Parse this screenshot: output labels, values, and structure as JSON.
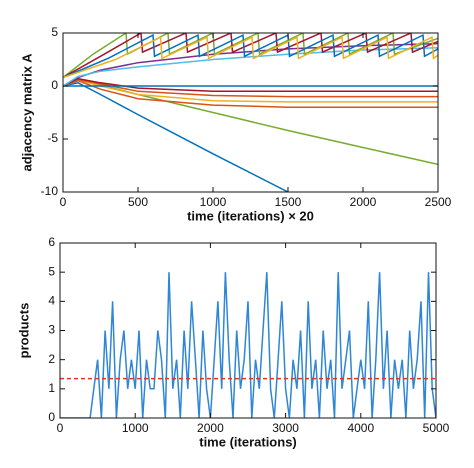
{
  "chart_data": [
    {
      "type": "line",
      "xlabel": "time (iterations) × 20",
      "ylabel": "adjacency matrix A",
      "xlim": [
        0,
        2500
      ],
      "xticks": [
        0,
        500,
        1000,
        1500,
        2000,
        2500
      ],
      "ylim": [
        -10,
        5
      ],
      "yticks": [
        -10,
        -5,
        0,
        5
      ],
      "series": [
        {
          "color": "#0072bd",
          "x": [
            0,
            100,
            250,
            500,
            1000,
            1500
          ],
          "values": [
            0,
            0.3,
            -0.8,
            -2.7,
            -6.4,
            -10
          ]
        },
        {
          "color": "#77ac30",
          "x": [
            0,
            100,
            250,
            500,
            1000,
            1500,
            2000,
            2500
          ],
          "values": [
            0,
            0.5,
            0.1,
            -0.8,
            -2.5,
            -4.2,
            -5.8,
            -7.4
          ]
        },
        {
          "color": "#d95319",
          "x": [
            0,
            100,
            250,
            500,
            1000,
            1500,
            2000,
            2500
          ],
          "values": [
            0,
            0.5,
            -0.3,
            -1.2,
            -1.8,
            -2,
            -2,
            -2
          ]
        },
        {
          "color": "#edb120",
          "x": [
            0,
            100,
            250,
            500,
            1000,
            1500,
            2000,
            2500
          ],
          "values": [
            0,
            0.6,
            0,
            -0.8,
            -1.4,
            -1.5,
            -1.5,
            -1.5
          ]
        },
        {
          "color": "#d95319",
          "x": [
            0,
            100,
            250,
            500,
            1000,
            1500,
            2000,
            2500
          ],
          "values": [
            0,
            0.6,
            0.2,
            -0.5,
            -0.9,
            -1,
            -1,
            -1
          ]
        },
        {
          "color": "#a2142f",
          "x": [
            0,
            100,
            250,
            500,
            1000,
            1500,
            2000,
            2500
          ],
          "values": [
            0,
            0.7,
            0.3,
            -0.2,
            -0.5,
            -0.5,
            -0.5,
            -0.5
          ]
        },
        {
          "color": "#0072bd",
          "x": [
            0,
            2500
          ],
          "values": [
            0,
            0
          ]
        },
        {
          "color": "#7e2f8e",
          "x": [
            0,
            100,
            250,
            500,
            1000,
            1500,
            2000,
            2500
          ],
          "values": [
            0,
            0.8,
            1.5,
            2.2,
            3,
            3.5,
            3.8,
            4
          ]
        },
        {
          "color": "#4dbeee",
          "x": [
            0,
            100,
            250,
            500,
            1000,
            1500,
            2000,
            2500
          ],
          "values": [
            0,
            0.9,
            1.4,
            1.8,
            2.5,
            3,
            3.4,
            3.6
          ]
        },
        {
          "color": "#77ac30",
          "x": [
            0,
            200,
            420,
            430,
            700,
            710,
            1000,
            1010,
            1300,
            1310,
            1600,
            1610,
            1900,
            1910,
            2200,
            2210,
            2500
          ],
          "values": [
            0.8,
            3,
            5,
            3,
            5,
            3,
            5,
            3,
            5,
            3,
            5,
            3,
            5,
            3,
            5,
            3,
            4.5
          ]
        },
        {
          "color": "#a2142f",
          "x": [
            0,
            250,
            520,
            530,
            820,
            830,
            1120,
            1130,
            1420,
            1430,
            1720,
            1730,
            2020,
            2030,
            2320,
            2330,
            2500
          ],
          "values": [
            0.8,
            2.8,
            5,
            3.2,
            5,
            3.2,
            5,
            3.2,
            5,
            3.2,
            5,
            3.2,
            5,
            3.2,
            5,
            3.2,
            4.2
          ]
        },
        {
          "color": "#0072bd",
          "x": [
            0,
            300,
            600,
            610,
            900,
            910,
            1200,
            1210,
            1500,
            1510,
            1800,
            1810,
            2100,
            2110,
            2400,
            2410,
            2500
          ],
          "values": [
            0.8,
            2.6,
            4.8,
            2.8,
            4.8,
            2.8,
            4.8,
            2.8,
            4.8,
            2.8,
            4.8,
            2.8,
            4.8,
            2.8,
            4.8,
            2.8,
            3.5
          ]
        },
        {
          "color": "#edb120",
          "x": [
            0,
            350,
            650,
            660,
            960,
            970,
            1260,
            1270,
            1560,
            1570,
            1860,
            1870,
            2160,
            2170,
            2460,
            2470,
            2500
          ],
          "values": [
            0.8,
            2.5,
            4.6,
            2.6,
            4.6,
            2.6,
            4.6,
            2.6,
            4.6,
            2.6,
            4.6,
            2.6,
            4.6,
            2.6,
            4.6,
            2.6,
            2.9
          ]
        }
      ]
    },
    {
      "type": "line",
      "xlabel": "time (iterations)",
      "ylabel": "products",
      "xlim": [
        0,
        5000
      ],
      "xticks": [
        0,
        1000,
        2000,
        3000,
        4000,
        5000
      ],
      "ylim": [
        0,
        6
      ],
      "yticks": [
        0,
        1,
        2,
        3,
        4,
        5,
        6
      ],
      "reference_line": {
        "value": 1.35,
        "color": "#e8301c"
      },
      "series": [
        {
          "color": "#2f86d6",
          "x": [
            0,
            50,
            100,
            150,
            200,
            250,
            300,
            350,
            400,
            450,
            500,
            550,
            600,
            650,
            700,
            750,
            800,
            850,
            900,
            950,
            1000,
            1050,
            1100,
            1150,
            1200,
            1250,
            1300,
            1350,
            1400,
            1450,
            1500,
            1550,
            1600,
            1650,
            1700,
            1750,
            1800,
            1850,
            1900,
            1950,
            2000,
            2050,
            2100,
            2150,
            2200,
            2250,
            2300,
            2350,
            2400,
            2450,
            2500,
            2550,
            2600,
            2650,
            2700,
            2750,
            2800,
            2850,
            2900,
            2950,
            3000,
            3050,
            3100,
            3150,
            3200,
            3250,
            3300,
            3350,
            3400,
            3450,
            3500,
            3550,
            3600,
            3650,
            3700,
            3750,
            3800,
            3850,
            3900,
            3950,
            4000,
            4050,
            4100,
            4150,
            4200,
            4250,
            4300,
            4350,
            4400,
            4450,
            4500,
            4550,
            4600,
            4650,
            4700,
            4750,
            4800,
            4850,
            4900,
            4950,
            5000
          ],
          "values": [
            0,
            0,
            0,
            0,
            0,
            0,
            0,
            0,
            0,
            1,
            2,
            0,
            3,
            1,
            4,
            0,
            2,
            3,
            1,
            2,
            1,
            3,
            0,
            2,
            1,
            1,
            3,
            2,
            0,
            5,
            1,
            2,
            0,
            3,
            1,
            4,
            2,
            0,
            3,
            1,
            0,
            2,
            4,
            1,
            5,
            2,
            0,
            3,
            1,
            2,
            4,
            0,
            2,
            1,
            3,
            5,
            1,
            0,
            2,
            4,
            1,
            0,
            2,
            1,
            3,
            0,
            4,
            1,
            2,
            0,
            3,
            1,
            2,
            0,
            5,
            1,
            2,
            3,
            0,
            1,
            2,
            1,
            4,
            0,
            2,
            5,
            1,
            3,
            0,
            2,
            1,
            2,
            0,
            3,
            1,
            2,
            4,
            0,
            5,
            1,
            0
          ]
        }
      ]
    }
  ]
}
